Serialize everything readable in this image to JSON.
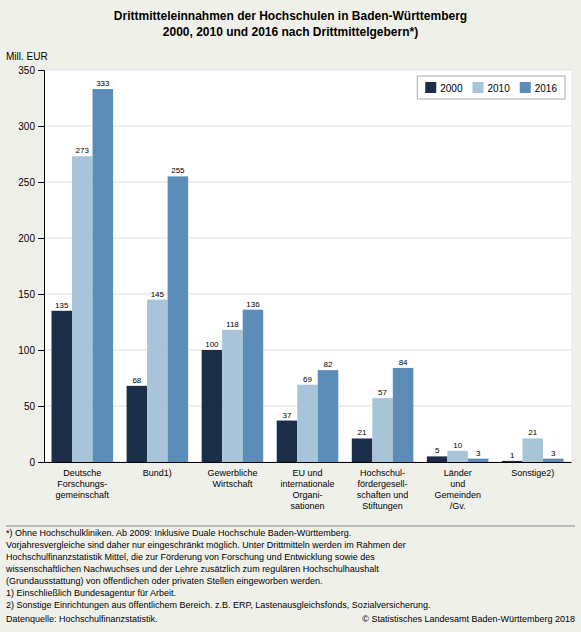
{
  "chart_data": {
    "type": "bar",
    "title": "Drittmitteleinnahmen der Hochschulen in Baden-Württemberg",
    "subtitle": "2000, 2010 und 2016 nach Drittmittelgebern*)",
    "ylabel": "Mill. EUR",
    "categories": [
      "Deutsche\nForschungs-\ngemeinschaft",
      "Bund1)",
      "Gewerbliche\nWirtschaft",
      "EU und\ninternationale\nOrgani-\nsationen",
      "Hochschul-\nfördergesell-\nschaften und\nStiftungen",
      "Länder\nund\nGemeinden\n/Gv.",
      "Sonstige2)"
    ],
    "series": [
      {
        "name": "2000",
        "color": "#1a2e4a",
        "values": [
          135,
          68,
          100,
          37,
          21,
          5,
          1
        ]
      },
      {
        "name": "2010",
        "color": "#a8c4d8",
        "values": [
          273,
          145,
          118,
          69,
          57,
          10,
          21
        ]
      },
      {
        "name": "2016",
        "color": "#5b8db8",
        "values": [
          333,
          255,
          136,
          82,
          84,
          3,
          3
        ]
      }
    ],
    "ylim": [
      0,
      350
    ],
    "yticks": [
      0,
      50,
      100,
      150,
      200,
      250,
      300,
      350
    ],
    "grid": true,
    "legend": "upper right",
    "data_labels": true,
    "footnotes": [
      "*) Ohne Hochschulkliniken. Ab 2009: Inklusive Duale Hochschule Baden-Württemberg.",
      "Vorjahresvergleiche sind daher nur eingeschränkt möglich. Unter Drittmitteln werden im Rahmen der",
      "Hochschulfinanzstatistik Mittel, die zur Förderung von Forschung und Entwicklung sowie des",
      "wissenschaftlichen Nachwuchses und der Lehre zusätzlich zum regulären Hochschulhaushalt",
      "(Grundausstattung) von öffentlichen oder privaten Stellen eingeworben werden.",
      "1) Einschließlich Bundesagentur für Arbeit.",
      "2) Sonstige Einrichtungen aus öffentlichem Bereich. z.B. ERP, Lastenausgleichsfonds, Sozialversicherung."
    ],
    "source": "Datenquelle: Hochschulfinanzstatistik.",
    "copyright": "© Statistisches Landesamt Baden-Württemberg 2018"
  }
}
